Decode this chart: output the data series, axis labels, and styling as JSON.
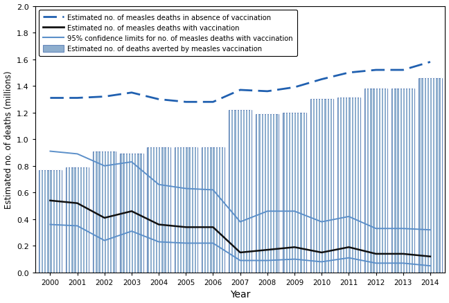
{
  "years": [
    2000,
    2001,
    2002,
    2003,
    2004,
    2005,
    2006,
    2007,
    2008,
    2009,
    2010,
    2011,
    2012,
    2013,
    2014
  ],
  "no_vaccination": [
    1.31,
    1.31,
    1.32,
    1.35,
    1.3,
    1.28,
    1.28,
    1.37,
    1.36,
    1.39,
    1.45,
    1.5,
    1.52,
    1.52,
    1.58
  ],
  "with_vaccination": [
    0.54,
    0.52,
    0.41,
    0.46,
    0.36,
    0.34,
    0.34,
    0.15,
    0.17,
    0.19,
    0.15,
    0.19,
    0.14,
    0.14,
    0.12
  ],
  "ci_upper": [
    0.91,
    0.89,
    0.8,
    0.83,
    0.66,
    0.63,
    0.62,
    0.38,
    0.46,
    0.46,
    0.38,
    0.42,
    0.33,
    0.33,
    0.32
  ],
  "ci_lower": [
    0.36,
    0.35,
    0.24,
    0.31,
    0.23,
    0.22,
    0.22,
    0.09,
    0.09,
    0.1,
    0.08,
    0.11,
    0.07,
    0.07,
    0.05
  ],
  "deaths_averted": [
    0.77,
    0.79,
    0.91,
    0.89,
    0.94,
    0.94,
    0.94,
    1.22,
    1.19,
    1.2,
    1.3,
    1.31,
    1.38,
    1.38,
    1.46
  ],
  "bar_color": "#8eaece",
  "bar_edge_color": "#6688bb",
  "no_vacc_color": "#2060b0",
  "with_vacc_color": "#111111",
  "ci_color": "#5b8fc9",
  "ylabel": "Estimated no. of deaths (millions)",
  "xlabel": "Year",
  "ylim": [
    0,
    2.0
  ],
  "yticks": [
    0,
    0.2,
    0.4,
    0.6,
    0.8,
    1.0,
    1.2,
    1.4,
    1.6,
    1.8,
    2.0
  ],
  "legend_labels": [
    "Estimated no. of measles deaths in absence of vaccination",
    "Estimated no. of measles deaths with vaccination",
    "95% confidence limits for no. of measles deaths with vaccination",
    "Estimated no. of deaths averted by measles vaccination"
  ],
  "n_stripes": 8,
  "bar_width": 0.85
}
